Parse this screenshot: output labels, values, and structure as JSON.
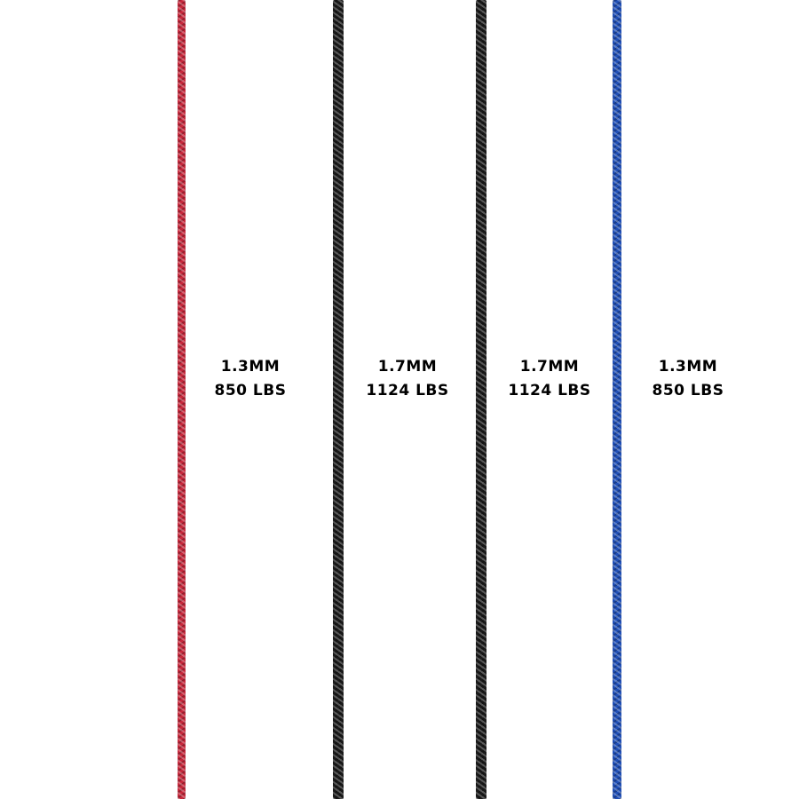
{
  "ropes": [
    {
      "color": "#c8283c",
      "diameter": "1.3MM",
      "strength": "850 LBS"
    },
    {
      "color": "#1a1a1a",
      "diameter": "1.7MM",
      "strength": "1124 LBS"
    },
    {
      "color": "#1a1a1a",
      "diameter": "1.7MM",
      "strength": "1124 LBS"
    },
    {
      "color": "#1f4fb8",
      "diameter": "1.3MM",
      "strength": "850 LBS"
    }
  ]
}
